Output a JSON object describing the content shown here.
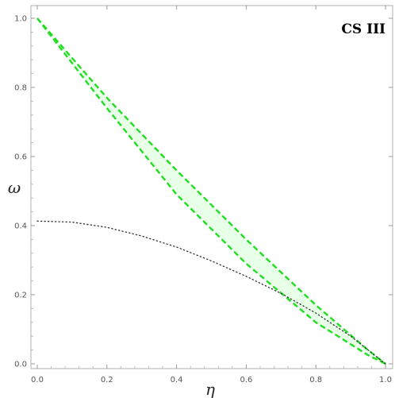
{
  "chart_data": {
    "type": "line",
    "panel_label": "CS III",
    "xlabel": "η",
    "ylabel": "ω",
    "xlim": [
      0,
      1
    ],
    "ylim": [
      0,
      1
    ],
    "x_ticks": [
      "0.0",
      "0.2",
      "0.4",
      "0.6",
      "0.8",
      "1.0"
    ],
    "y_ticks": [
      "0.0",
      "0.2",
      "0.4",
      "0.6",
      "0.8",
      "1.0"
    ],
    "grid": false,
    "region": {
      "fill": "#e6ffe6",
      "upper_boundary": [
        [
          0.0,
          1.0
        ],
        [
          0.2,
          0.77
        ],
        [
          0.4,
          0.56
        ],
        [
          0.6,
          0.36
        ],
        [
          0.8,
          0.17
        ],
        [
          0.95,
          0.04
        ],
        [
          1.0,
          0.0
        ]
      ],
      "lower_boundary": [
        [
          0.0,
          1.0
        ],
        [
          0.2,
          0.74
        ],
        [
          0.4,
          0.49
        ],
        [
          0.6,
          0.29
        ],
        [
          0.8,
          0.12
        ],
        [
          0.95,
          0.025
        ],
        [
          1.0,
          0.0
        ]
      ]
    },
    "series": [
      {
        "style": "dashed",
        "color": "#22dd22",
        "points": [
          [
            0.0,
            1.0
          ],
          [
            0.2,
            0.77
          ],
          [
            0.4,
            0.56
          ],
          [
            0.6,
            0.36
          ],
          [
            0.8,
            0.17
          ],
          [
            0.95,
            0.04
          ],
          [
            1.0,
            0.0
          ]
        ]
      },
      {
        "style": "dashed",
        "color": "#22dd22",
        "points": [
          [
            0.0,
            1.0
          ],
          [
            0.2,
            0.74
          ],
          [
            0.4,
            0.49
          ],
          [
            0.6,
            0.29
          ],
          [
            0.8,
            0.12
          ],
          [
            0.95,
            0.025
          ],
          [
            1.0,
            0.0
          ]
        ]
      },
      {
        "style": "dotted",
        "color": "#333333",
        "points": [
          [
            0.0,
            0.413
          ],
          [
            0.1,
            0.41
          ],
          [
            0.2,
            0.395
          ],
          [
            0.3,
            0.37
          ],
          [
            0.4,
            0.338
          ],
          [
            0.5,
            0.298
          ],
          [
            0.6,
            0.253
          ],
          [
            0.7,
            0.204
          ],
          [
            0.8,
            0.147
          ],
          [
            0.9,
            0.08
          ],
          [
            1.0,
            0.0
          ]
        ]
      }
    ]
  }
}
